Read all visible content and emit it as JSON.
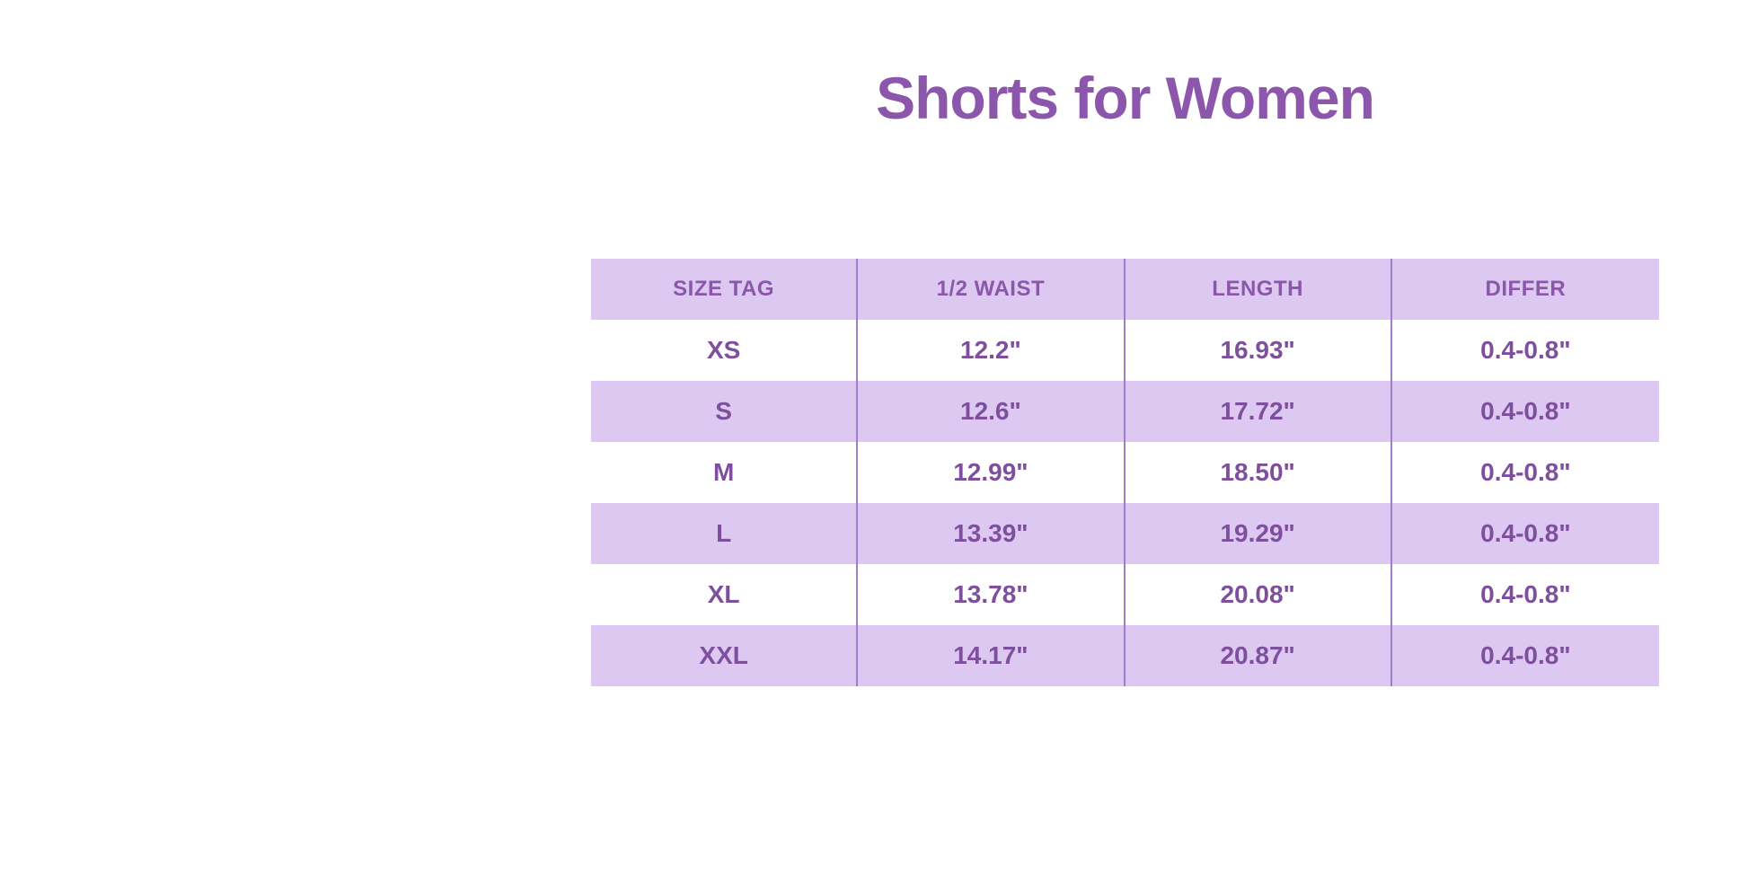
{
  "title": "Shorts for Women",
  "colors": {
    "background": "#ffffff",
    "title_text": "#8b56ab",
    "band": "#dcc8f1",
    "divider": "#9e7fc9",
    "header_text": "#8a57a9",
    "cell_text": "#7d4f9c"
  },
  "chart_data": {
    "type": "table",
    "title": "Shorts for Women",
    "columns": [
      "SIZE TAG",
      "1/2 WAIST",
      "LENGTH",
      "DIFFER"
    ],
    "rows": [
      [
        "XS",
        "12.2\"",
        "16.93\"",
        "0.4-0.8\""
      ],
      [
        "S",
        "12.6\"",
        "17.72\"",
        "0.4-0.8\""
      ],
      [
        "M",
        "12.99\"",
        "18.50\"",
        "0.4-0.8\""
      ],
      [
        "L",
        "13.39\"",
        "19.29\"",
        "0.4-0.8\""
      ],
      [
        "XL",
        "13.78\"",
        "20.08\"",
        "0.4-0.8\""
      ],
      [
        "XXL",
        "14.17\"",
        "20.87\"",
        "0.4-0.8\""
      ]
    ],
    "layout": {
      "row_striping": [
        "band",
        "white"
      ],
      "column_dividers": true,
      "outer_border": false
    }
  }
}
